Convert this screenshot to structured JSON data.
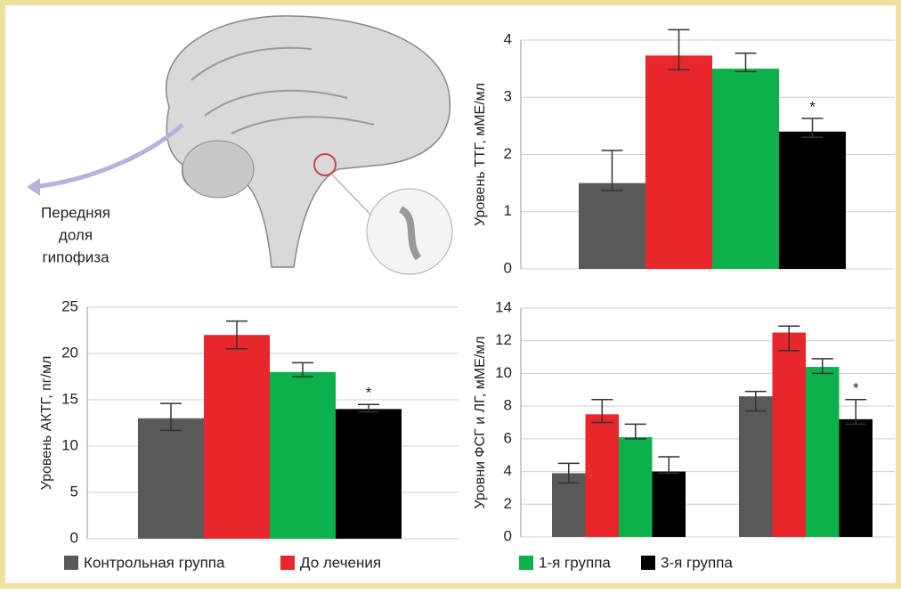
{
  "illustration": {
    "label_lines": [
      "Передняя",
      "доля",
      "гипофиза"
    ]
  },
  "chart_data": [
    {
      "type": "bar",
      "y_label": "Уровень ТТГ, мМЕ/мл",
      "categories": [
        null
      ],
      "ylim": [
        0,
        4
      ],
      "yticks": [
        0,
        1,
        2,
        3,
        4
      ],
      "grid": true,
      "annotation": "*",
      "series": [
        {
          "color": "#595959",
          "values": [
            1.5
          ],
          "err_low": [
            0.13
          ],
          "err_high": [
            0.57
          ]
        },
        {
          "color": "#e8262b",
          "values": [
            3.73
          ],
          "err_low": [
            0.25
          ],
          "err_high": [
            0.45
          ]
        },
        {
          "color": "#0db14b",
          "values": [
            3.5
          ],
          "err_low": [
            0.05
          ],
          "err_high": [
            0.27
          ]
        },
        {
          "color": "#000000",
          "values": [
            2.4
          ],
          "err_low": [
            0.1
          ],
          "err_high": [
            0.23
          ]
        }
      ]
    },
    {
      "type": "bar",
      "y_label": "Уровень АКТГ, пг/мл",
      "categories": [
        null
      ],
      "ylim": [
        0,
        25
      ],
      "yticks": [
        0,
        5,
        10,
        15,
        20,
        25
      ],
      "grid": true,
      "annotation": "*",
      "series": [
        {
          "name": "Контрольная группа",
          "color": "#595959",
          "values": [
            13
          ],
          "err_low": [
            1.3
          ],
          "err_high": [
            1.6
          ]
        },
        {
          "name": "До лечения",
          "color": "#e8262b",
          "values": [
            22
          ],
          "err_low": [
            1.5
          ],
          "err_high": [
            1.5
          ]
        },
        {
          "name": "1-я группа",
          "color": "#0db14b",
          "values": [
            18
          ],
          "err_low": [
            0.5
          ],
          "err_high": [
            1
          ]
        },
        {
          "name": "3-я группа",
          "color": "#000000",
          "values": [
            14
          ],
          "err_low": [
            0.3
          ],
          "err_high": [
            0.5
          ]
        }
      ]
    },
    {
      "type": "bar",
      "y_label": "Уровни ФСГ и ЛГ, мМЕ/мл",
      "categories": [
        null,
        null
      ],
      "ylim": [
        0,
        14
      ],
      "yticks": [
        0,
        2,
        4,
        6,
        8,
        10,
        12,
        14
      ],
      "grid": true,
      "annotation": "*",
      "series": [
        {
          "color": "#595959",
          "values": [
            3.9,
            8.6
          ],
          "err_low": [
            0.6,
            0.9
          ],
          "err_high": [
            0.6,
            0.3
          ]
        },
        {
          "color": "#e8262b",
          "values": [
            7.5,
            12.5
          ],
          "err_low": [
            0.5,
            1.1
          ],
          "err_high": [
            0.9,
            0.4
          ]
        },
        {
          "color": "#0db14b",
          "values": [
            6.1,
            10.4
          ],
          "err_low": [
            0.1,
            0.4
          ],
          "err_high": [
            0.8,
            0.5
          ]
        },
        {
          "color": "#000000",
          "values": [
            4.0,
            7.2
          ],
          "err_low": [
            0.1,
            0.3
          ],
          "err_high": [
            0.9,
            1.2
          ]
        }
      ]
    }
  ]
}
